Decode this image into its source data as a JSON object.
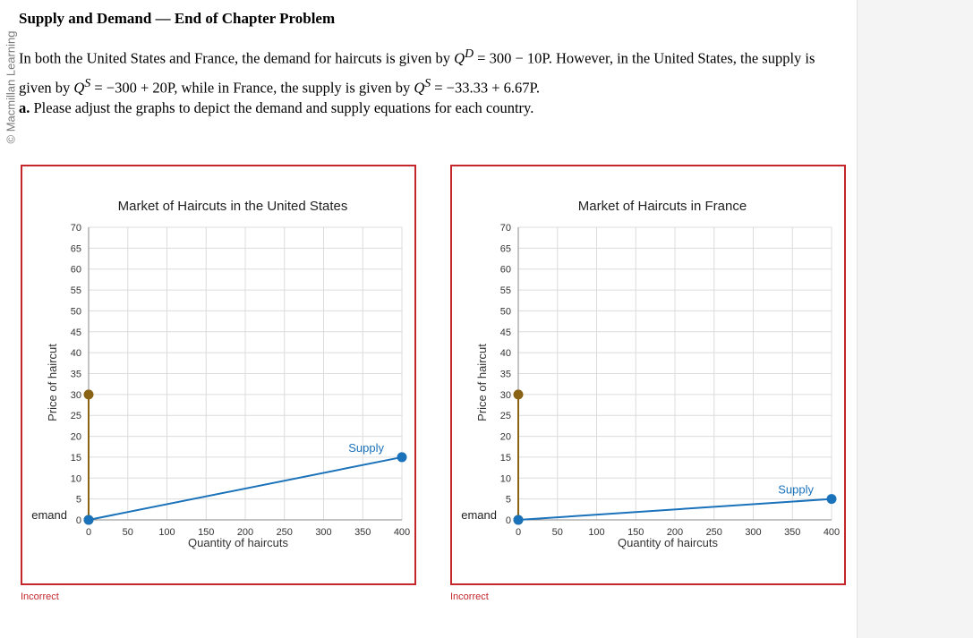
{
  "watermark": "© Macmillan Learning",
  "header": {
    "title": "Supply and Demand — End of Chapter Problem"
  },
  "problem": {
    "intro_1": "In both the United States and France, the demand for haircuts is given by ",
    "demand_eq": "Q",
    "demand_sup": "D",
    "demand_rhs": " = 300 − 10P",
    "mid_1": ". However, in the United States, the supply is given by ",
    "us_supply_q": "Q",
    "us_supply_sup": "S",
    "us_supply_rhs": " = −300 + 20P",
    "mid_2": ", while in France, the supply is given by ",
    "fr_supply_q": "Q",
    "fr_supply_sup": "S",
    "fr_supply_rhs": " = −33.33 + 6.67P",
    "end": "."
  },
  "question": {
    "label": "a.",
    "text": " Please adjust the graphs to depict the demand and supply equations for each country."
  },
  "feedback": {
    "us": "Incorrect",
    "fr": "Incorrect"
  },
  "chart_data": [
    {
      "type": "line",
      "title": "Market of Haircuts in the United States",
      "xlabel": "Quantity of haircuts",
      "ylabel": "Price of haircut",
      "xlim": [
        0,
        400
      ],
      "ylim": [
        0,
        70
      ],
      "xticks": [
        0,
        50,
        100,
        150,
        200,
        250,
        300,
        350,
        400
      ],
      "yticks": [
        0,
        5,
        10,
        15,
        20,
        25,
        30,
        35,
        40,
        45,
        50,
        55,
        60,
        65,
        70
      ],
      "grid": true,
      "series": [
        {
          "name": "Demand",
          "label": "emand",
          "color": "#8a6414",
          "points": [
            [
              0,
              30
            ],
            [
              0,
              0
            ]
          ]
        },
        {
          "name": "Supply",
          "label": "Supply",
          "color": "#1a72bb",
          "points": [
            [
              0,
              0
            ],
            [
              400,
              15
            ]
          ]
        }
      ]
    },
    {
      "type": "line",
      "title": "Market of Haircuts in France",
      "xlabel": "Quantity of haircuts",
      "ylabel": "Price of haircut",
      "xlim": [
        0,
        400
      ],
      "ylim": [
        0,
        70
      ],
      "xticks": [
        0,
        50,
        100,
        150,
        200,
        250,
        300,
        350,
        400
      ],
      "yticks": [
        0,
        5,
        10,
        15,
        20,
        25,
        30,
        35,
        40,
        45,
        50,
        55,
        60,
        65,
        70
      ],
      "grid": true,
      "series": [
        {
          "name": "Demand",
          "label": "emand",
          "color": "#8a6414",
          "points": [
            [
              0,
              30
            ],
            [
              0,
              0
            ]
          ]
        },
        {
          "name": "Supply",
          "label": "Supply",
          "color": "#1a72bb",
          "points": [
            [
              0,
              0
            ],
            [
              400,
              5
            ]
          ]
        }
      ]
    }
  ]
}
